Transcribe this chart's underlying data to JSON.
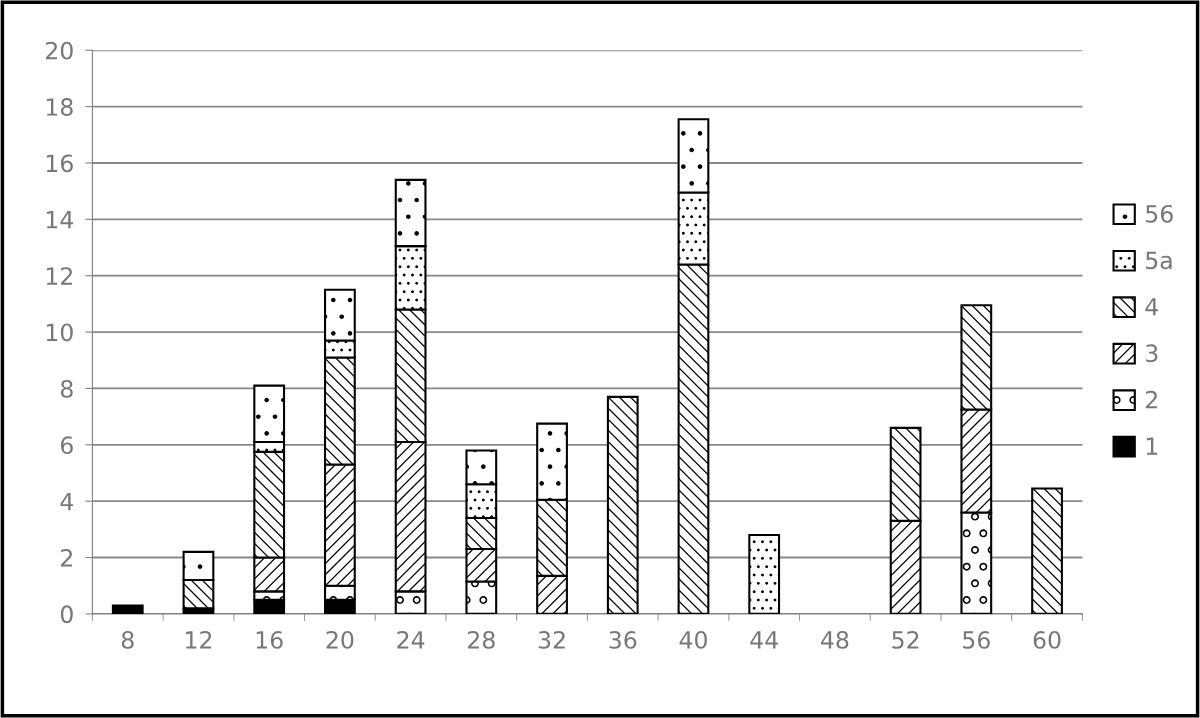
{
  "chart_data": {
    "type": "bar",
    "stacked": true,
    "categories": [
      "8",
      "12",
      "16",
      "20",
      "24",
      "28",
      "32",
      "36",
      "40",
      "44",
      "48",
      "52",
      "56",
      "60"
    ],
    "series": [
      {
        "name": "1",
        "color": "#000000",
        "values": [
          0.3,
          0.2,
          0.5,
          0.5,
          null,
          null,
          null,
          null,
          null,
          null,
          null,
          null,
          null,
          null
        ]
      },
      {
        "name": "2",
        "color": "#000000",
        "values": [
          null,
          null,
          0.3,
          0.5,
          0.8,
          1.15,
          null,
          null,
          null,
          null,
          null,
          null,
          3.6,
          null
        ]
      },
      {
        "name": "3",
        "color": "#000000",
        "values": [
          null,
          null,
          1.2,
          4.3,
          5.3,
          1.15,
          1.35,
          null,
          null,
          null,
          null,
          3.3,
          3.65,
          null
        ]
      },
      {
        "name": "4",
        "color": "#000000",
        "values": [
          null,
          1.0,
          3.75,
          3.8,
          4.7,
          1.1,
          2.7,
          7.7,
          12.4,
          null,
          null,
          3.3,
          3.7,
          4.45
        ]
      },
      {
        "name": "5a",
        "color": "#000000",
        "values": [
          null,
          null,
          0.35,
          0.6,
          2.25,
          1.2,
          null,
          null,
          2.55,
          2.8,
          null,
          null,
          null,
          null
        ]
      },
      {
        "name": "56",
        "color": "#000000",
        "values": [
          null,
          1.0,
          2.0,
          1.8,
          2.35,
          1.2,
          2.7,
          null,
          2.6,
          null,
          null,
          null,
          null,
          null
        ]
      }
    ],
    "ylim": [
      0,
      20
    ],
    "yticks": [
      0,
      2,
      4,
      6,
      8,
      10,
      12,
      14,
      16,
      18,
      20
    ],
    "grid": "y",
    "legend": "right"
  }
}
